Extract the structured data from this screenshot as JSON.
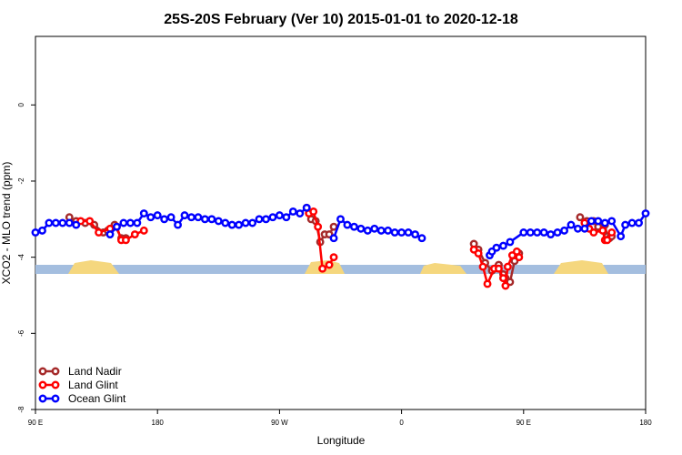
{
  "chart_data": {
    "type": "line",
    "title": "25S-20S February (Ver 10)   2015-01-01 to 2020-12-18",
    "xlabel": "Longitude",
    "ylabel": "XCO2 - MLO trend (ppm)",
    "xlim": [
      -90,
      180
    ],
    "ylim": [
      -8,
      1.8
    ],
    "x_ticks": [
      {
        "value": -90,
        "label": "90 E"
      },
      {
        "value": -36,
        "label": "180"
      },
      {
        "value": 18,
        "label": "90 W"
      },
      {
        "value": 72,
        "label": "0"
      },
      {
        "value": 126,
        "label": "90 E"
      },
      {
        "value": 180,
        "label": "180"
      }
    ],
    "y_ticks": [
      {
        "value": 0,
        "label": "0"
      },
      {
        "value": -2,
        "label": "-2"
      },
      {
        "value": -4,
        "label": "-4"
      },
      {
        "value": -6,
        "label": "-6"
      },
      {
        "value": -8,
        "label": "-8"
      }
    ],
    "colors": {
      "land_nadir": "#a52a2a",
      "land_glint": "#ff0000",
      "ocean_glint": "#0000ff",
      "ocean_band": "#a4bedf",
      "land_band": "#f5d77e"
    },
    "legend_position": "bottom-left",
    "series": [
      {
        "name": "Land Nadir",
        "color": "#a52a2a",
        "points": [
          [
            -75,
            -2.95
          ],
          [
            -72,
            -3.05
          ],
          [
            -68,
            -3.1
          ],
          [
            -64,
            -3.15
          ],
          [
            -60,
            -3.35
          ],
          [
            -58,
            -3.3
          ],
          [
            -55,
            -3.15
          ],
          [
            -52,
            -3.5
          ],
          [
            -50,
            -3.5
          ],
          [
            30,
            -2.7
          ],
          [
            32,
            -3.0
          ],
          [
            34,
            -3.05
          ],
          [
            36,
            -3.6
          ],
          [
            38,
            -3.4
          ],
          [
            40,
            -3.4
          ],
          [
            42,
            -3.2
          ],
          [
            104,
            -3.65
          ],
          [
            106,
            -3.8
          ],
          [
            109,
            -4.15
          ],
          [
            112,
            -4.35
          ],
          [
            115,
            -4.2
          ],
          [
            117,
            -4.45
          ],
          [
            118,
            -4.55
          ],
          [
            119,
            -4.65
          ],
          [
            120,
            -4.65
          ],
          [
            122,
            -4.1
          ],
          [
            124,
            -3.9
          ],
          [
            151,
            -2.95
          ],
          [
            154,
            -3.05
          ],
          [
            157,
            -3.05
          ],
          [
            159,
            -3.2
          ],
          [
            162,
            -3.15
          ],
          [
            163,
            -3.45
          ],
          [
            164,
            -3.5
          ],
          [
            165,
            -3.45
          ]
        ]
      },
      {
        "name": "Land Glint",
        "color": "#ff0000",
        "points": [
          [
            -70,
            -3.05
          ],
          [
            -66,
            -3.05
          ],
          [
            -62,
            -3.35
          ],
          [
            -57,
            -3.25
          ],
          [
            -54,
            -3.2
          ],
          [
            -52,
            -3.55
          ],
          [
            -50,
            -3.55
          ],
          [
            -46,
            -3.4
          ],
          [
            -42,
            -3.3
          ],
          [
            31,
            -2.85
          ],
          [
            33,
            -2.8
          ],
          [
            35,
            -3.2
          ],
          [
            37,
            -4.3
          ],
          [
            40,
            -4.2
          ],
          [
            42,
            -4.0
          ],
          [
            104,
            -3.8
          ],
          [
            106,
            -3.9
          ],
          [
            108,
            -4.25
          ],
          [
            110,
            -4.7
          ],
          [
            113,
            -4.3
          ],
          [
            115,
            -4.3
          ],
          [
            117,
            -4.55
          ],
          [
            118,
            -4.75
          ],
          [
            119,
            -4.25
          ],
          [
            121,
            -3.95
          ],
          [
            123,
            -3.85
          ],
          [
            124,
            -4.0
          ],
          [
            153,
            -3.1
          ],
          [
            155,
            -3.25
          ],
          [
            157,
            -3.35
          ],
          [
            161,
            -3.3
          ],
          [
            162,
            -3.55
          ],
          [
            163,
            -3.55
          ],
          [
            165,
            -3.35
          ]
        ]
      },
      {
        "name": "Ocean Glint",
        "color": "#0000ff",
        "points": [
          [
            -90,
            -3.35
          ],
          [
            -87,
            -3.3
          ],
          [
            -84,
            -3.1
          ],
          [
            -81,
            -3.1
          ],
          [
            -78,
            -3.1
          ],
          [
            -75,
            -3.1
          ],
          [
            -72,
            -3.15
          ],
          [
            -57,
            -3.4
          ],
          [
            -54,
            -3.2
          ],
          [
            -51,
            -3.1
          ],
          [
            -48,
            -3.1
          ],
          [
            -45,
            -3.1
          ],
          [
            -42,
            -2.85
          ],
          [
            -39,
            -2.95
          ],
          [
            -36,
            -2.9
          ],
          [
            -33,
            -3.0
          ],
          [
            -30,
            -2.95
          ],
          [
            -27,
            -3.15
          ],
          [
            -24,
            -2.9
          ],
          [
            -21,
            -2.95
          ],
          [
            -18,
            -2.95
          ],
          [
            -15,
            -3.0
          ],
          [
            -12,
            -3.0
          ],
          [
            -9,
            -3.05
          ],
          [
            -6,
            -3.1
          ],
          [
            -3,
            -3.15
          ],
          [
            0,
            -3.15
          ],
          [
            3,
            -3.1
          ],
          [
            6,
            -3.1
          ],
          [
            9,
            -3.0
          ],
          [
            12,
            -3.0
          ],
          [
            15,
            -2.95
          ],
          [
            18,
            -2.9
          ],
          [
            21,
            -2.95
          ],
          [
            24,
            -2.8
          ],
          [
            27,
            -2.85
          ],
          [
            30,
            -2.7
          ],
          [
            42,
            -3.5
          ],
          [
            45,
            -3.0
          ],
          [
            48,
            -3.15
          ],
          [
            51,
            -3.2
          ],
          [
            54,
            -3.25
          ],
          [
            57,
            -3.3
          ],
          [
            60,
            -3.25
          ],
          [
            63,
            -3.3
          ],
          [
            66,
            -3.3
          ],
          [
            69,
            -3.35
          ],
          [
            72,
            -3.35
          ],
          [
            75,
            -3.35
          ],
          [
            78,
            -3.4
          ],
          [
            81,
            -3.5
          ],
          [
            111,
            -3.95
          ],
          [
            112,
            -3.85
          ],
          [
            114,
            -3.75
          ],
          [
            117,
            -3.7
          ],
          [
            120,
            -3.6
          ],
          [
            126,
            -3.35
          ],
          [
            129,
            -3.35
          ],
          [
            132,
            -3.35
          ],
          [
            135,
            -3.35
          ],
          [
            138,
            -3.4
          ],
          [
            141,
            -3.35
          ],
          [
            144,
            -3.3
          ],
          [
            147,
            -3.15
          ],
          [
            150,
            -3.25
          ],
          [
            153,
            -3.25
          ],
          [
            156,
            -3.05
          ],
          [
            159,
            -3.05
          ],
          [
            162,
            -3.1
          ],
          [
            165,
            -3.05
          ],
          [
            169,
            -3.45
          ],
          [
            171,
            -3.15
          ],
          [
            174,
            -3.1
          ],
          [
            177,
            -3.1
          ],
          [
            180,
            -2.85
          ]
        ]
      }
    ]
  }
}
